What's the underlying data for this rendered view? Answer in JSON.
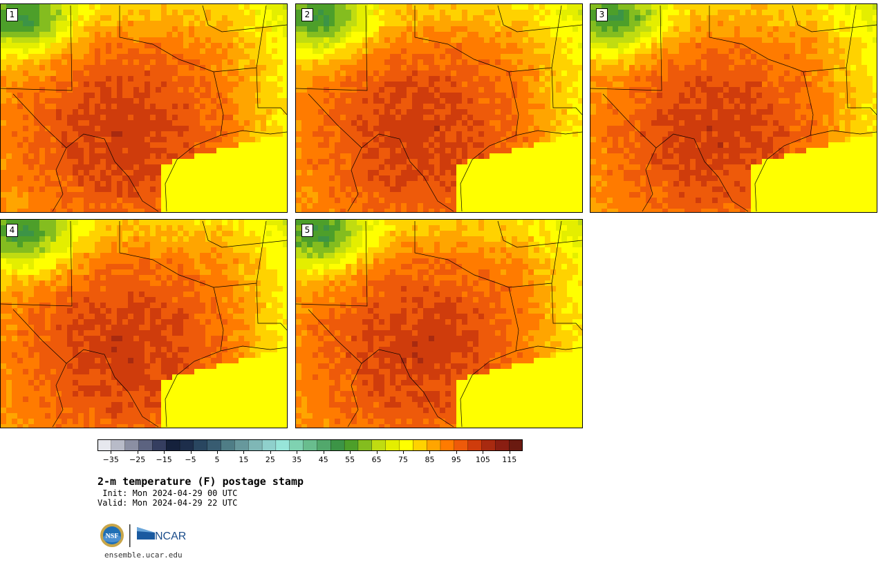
{
  "panels": [
    {
      "label": "1",
      "seed": 11
    },
    {
      "label": "2",
      "seed": 23
    },
    {
      "label": "3",
      "seed": 37
    },
    {
      "label": "4",
      "seed": 41
    },
    {
      "label": "5",
      "seed": 59
    }
  ],
  "colorbar": {
    "colors": [
      "#e6e8ee",
      "#b8bbc8",
      "#8b8fa3",
      "#5c6380",
      "#353e60",
      "#15213c",
      "#1d2e4b",
      "#294660",
      "#385c71",
      "#4f7d86",
      "#67989c",
      "#7fb7b6",
      "#8fd0cc",
      "#97e5d9",
      "#7fd2b1",
      "#69bd8e",
      "#52a86c",
      "#3c9446",
      "#4d9f2a",
      "#84bd1f",
      "#c0dc11",
      "#e4ee00",
      "#ffff00",
      "#ffd200",
      "#ffa500",
      "#ff7b00",
      "#ee5a0a",
      "#cf3c0c",
      "#a82a10",
      "#8a1e12",
      "#6a1a10"
    ],
    "tick_labels": [
      "−35",
      "−25",
      "−15",
      "−5",
      "5",
      "15",
      "25",
      "35",
      "45",
      "55",
      "65",
      "75",
      "85",
      "95",
      "105",
      "115"
    ],
    "min": -40,
    "max": 120
  },
  "title": "2-m temperature (F) postage stamp",
  "init": " Init: Mon 2024-04-29 00 UTC",
  "valid": "Valid: Mon 2024-04-29 22 UTC",
  "logo_nsf_text": "NSF",
  "logo_ncar_text": "NCAR",
  "site": "ensemble.ucar.edu"
}
